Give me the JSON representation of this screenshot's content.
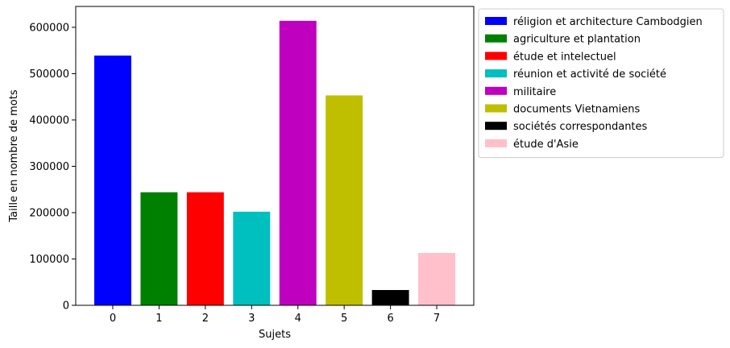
{
  "chart_data": {
    "type": "bar",
    "categories": [
      "0",
      "1",
      "2",
      "3",
      "4",
      "5",
      "6",
      "7"
    ],
    "values": [
      539000,
      244000,
      244000,
      202000,
      614000,
      453000,
      33000,
      113000
    ],
    "colors": [
      "#0000ff",
      "#008000",
      "#ff0000",
      "#00bfbf",
      "#bf00bf",
      "#bfbf00",
      "#000000",
      "#ffc0cb"
    ],
    "legend": [
      "réligion et architecture Cambodgien",
      "agriculture et plantation",
      "étude et intelectuel",
      "réunion et activité de société",
      "militaire",
      "documents Vietnamiens",
      "sociétés correspondantes",
      "étude d'Asie"
    ],
    "legend_position": "outside-right-top",
    "title": "",
    "xlabel": "Sujets",
    "ylabel": "Taille en nombre de mots",
    "ylim": [
      0,
      645000
    ],
    "yticks": [
      0,
      100000,
      200000,
      300000,
      400000,
      500000,
      600000
    ],
    "grid": false
  }
}
